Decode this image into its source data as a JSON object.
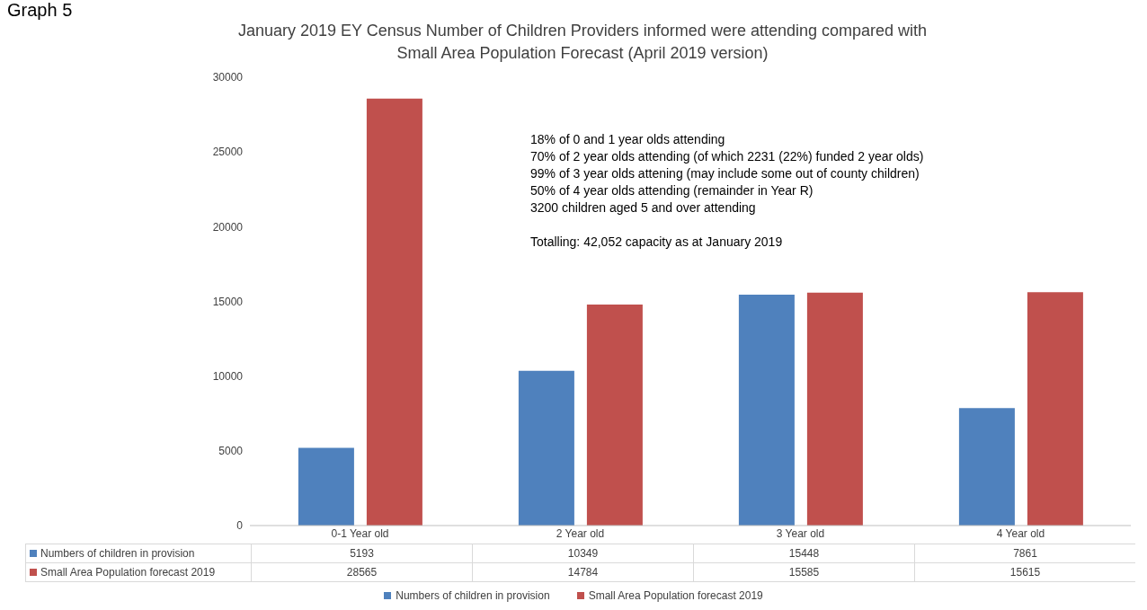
{
  "chart_data": {
    "type": "bar",
    "title": "January 2019 EY Census Number of Children Providers informed were attending compared with Small Area Population Forecast (April 2019 version)",
    "categories": [
      "0-1 Year old",
      "2 Year old",
      "3 Year old",
      "4 Year old"
    ],
    "series": [
      {
        "name": "Numbers of children in provision",
        "color": "#4f81bd",
        "values": [
          5193,
          10349,
          15448,
          7861
        ]
      },
      {
        "name": "Small Area Population forecast 2019",
        "color": "#c0504d",
        "values": [
          28565,
          14784,
          15585,
          15615
        ]
      }
    ],
    "ylim": [
      0,
      30000
    ],
    "yticks": [
      0,
      5000,
      10000,
      15000,
      20000,
      25000,
      30000
    ],
    "data_labels": true,
    "legend": "bottom",
    "annotations": [
      "Graph 5",
      "18% of 0 and 1 year olds attending",
      "70% of 2 year olds attending (of which 2231 (22%) funded 2 year olds)",
      "99% of 3 year olds attening (may include some out of county children)",
      "50% of 4 year olds attending (remainder in Year R)",
      "3200 children aged 5 and over attending",
      "Totalling: 42,052 capacity as at January 2019"
    ]
  }
}
